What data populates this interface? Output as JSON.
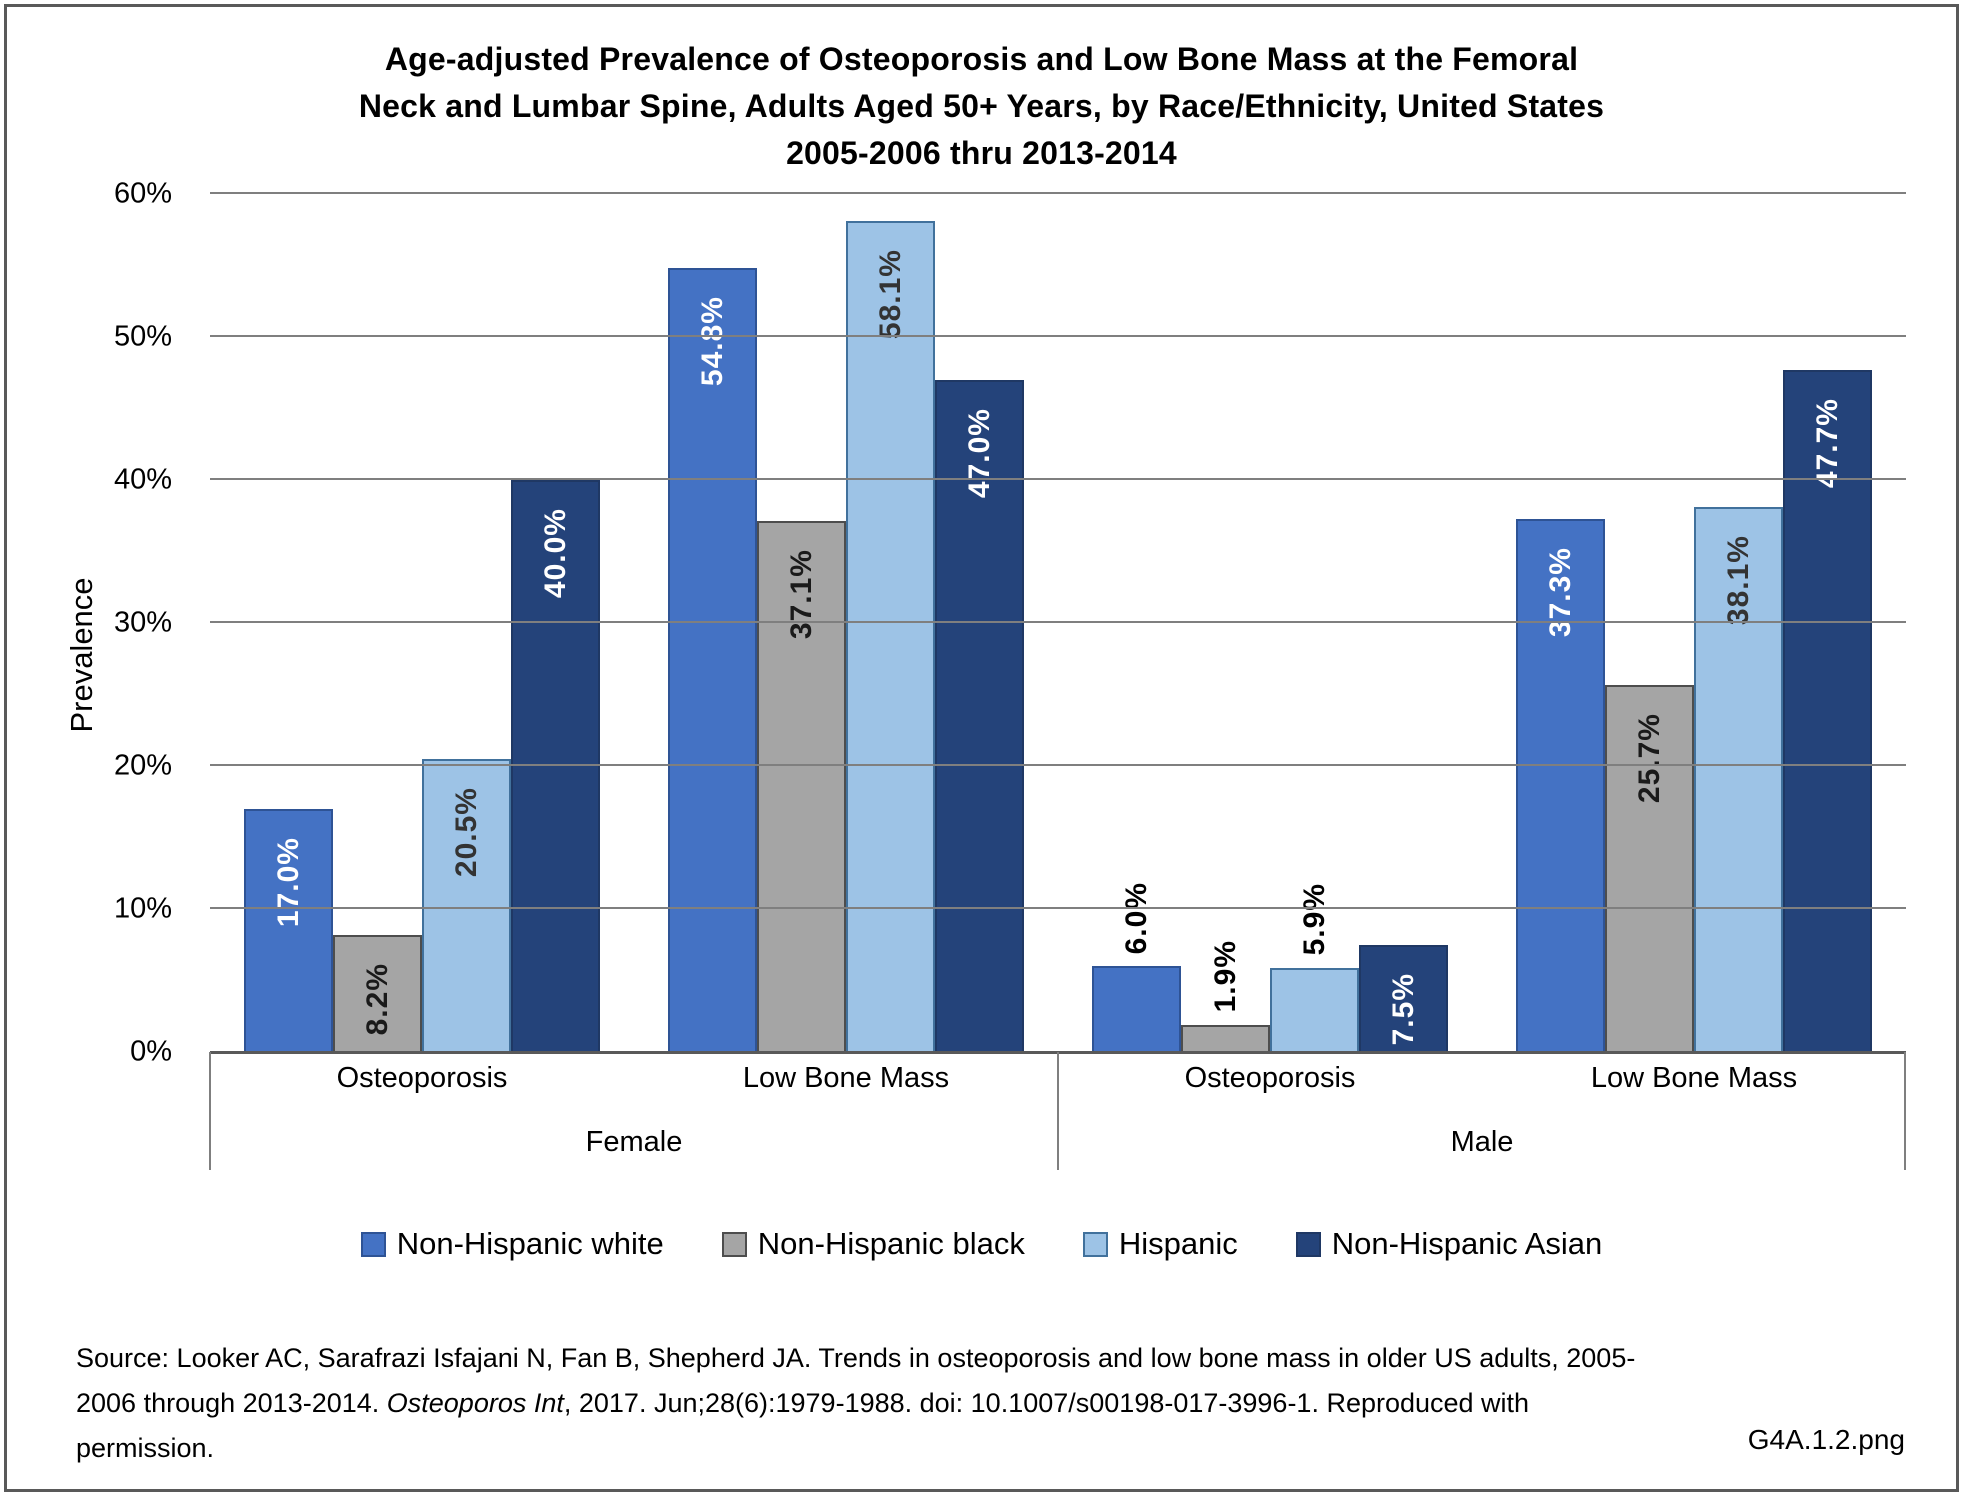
{
  "title": {
    "lines": [
      "Age-adjusted Prevalence of Osteoporosis and Low Bone Mass at the Femoral",
      "Neck and Lumbar Spine, Adults Aged 50+ Years, by Race/Ethnicity, United States",
      "2005-2006 thru 2013-2014"
    ]
  },
  "chart_data": {
    "type": "bar",
    "title": "Age-adjusted Prevalence of Osteoporosis and Low Bone Mass at the Femoral Neck and Lumbar Spine, Adults Aged 50+ Years, by Race/Ethnicity, United States 2005-2006 thru 2013-2014",
    "xlabel": "",
    "ylabel": "Prevalence",
    "ylim": [
      0,
      60
    ],
    "grid": true,
    "legend_position": "bottom",
    "gridline_color": "#7F7F7F",
    "axis_color": "#595959",
    "label_color_outside": "#000000",
    "y_ticks": [
      {
        "value": 0,
        "label": "0%"
      },
      {
        "value": 10,
        "label": "10%"
      },
      {
        "value": 20,
        "label": "20%"
      },
      {
        "value": 30,
        "label": "30%"
      },
      {
        "value": 40,
        "label": "40%"
      },
      {
        "value": 50,
        "label": "50%"
      },
      {
        "value": 60,
        "label": "60%"
      }
    ],
    "categories": [
      "Osteoporosis",
      "Low Bone Mass",
      "Osteoporosis",
      "Low Bone Mass"
    ],
    "group_labels": [
      "Female",
      "Male"
    ],
    "series": [
      {
        "name": "Non-Hispanic white",
        "color": "#4472C4",
        "border_color": "#2E5395",
        "values": [
          17.0,
          54.8,
          6.0,
          37.3
        ],
        "labels": [
          "17.0%",
          "54.8%",
          "6.0%",
          "37.3%"
        ],
        "label_inside": [
          true,
          true,
          false,
          true
        ],
        "label_color_inside": "#FFFFFF"
      },
      {
        "name": "Non-Hispanic black",
        "color": "#A5A5A5",
        "border_color": "#4D4D4D",
        "values": [
          8.2,
          37.1,
          1.9,
          25.7
        ],
        "labels": [
          "8.2%",
          "37.1%",
          "1.9%",
          "25.7%"
        ],
        "label_inside": [
          true,
          true,
          false,
          true
        ],
        "label_color_inside": "#1A1A1A"
      },
      {
        "name": "Hispanic",
        "color": "#9DC3E6",
        "border_color": "#41719C",
        "values": [
          20.5,
          58.1,
          5.9,
          38.1
        ],
        "labels": [
          "20.5%",
          "58.1%",
          "5.9%",
          "38.1%"
        ],
        "label_inside": [
          true,
          true,
          false,
          true
        ],
        "label_color_inside": "#333333"
      },
      {
        "name": "Non-Hispanic Asian",
        "color": "#24437A",
        "border_color": "#1F3864",
        "values": [
          40.0,
          47.0,
          7.5,
          47.7
        ],
        "labels": [
          "40.0%",
          "47.0%",
          "7.5%",
          "47.7%"
        ],
        "label_inside": [
          true,
          true,
          true,
          true
        ],
        "label_color_inside": "#FFFFFF"
      }
    ]
  },
  "source": {
    "line1": "Source: Looker AC, Sarafrazi Isfajani N, Fan B, Shepherd JA. Trends in osteoporosis and low bone mass in older US adults, 2005-",
    "line2_pre": "2006 through 2013-2014. ",
    "line2_italic": "Osteoporos Int",
    "line2_post": ", 2017. Jun;28(6):1979-1988. doi: 10.1007/s00198-017-3996-1. Reproduced with",
    "line3": "permission."
  },
  "footer": {
    "file_label": "G4A.1.2.png"
  }
}
